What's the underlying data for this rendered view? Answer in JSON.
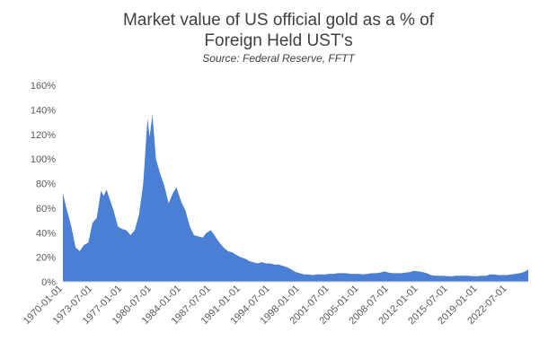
{
  "chart_data": {
    "type": "area",
    "title": "Market value of US official gold as a % of",
    "title_line2": "Foreign Held UST's",
    "subtitle": "Source:  Federal Reserve, FFTT",
    "xlabel": "",
    "ylabel": "",
    "color": "#4a7fd4",
    "ylim": [
      0,
      160
    ],
    "y_ticks": [
      "0%",
      "20%",
      "40%",
      "60%",
      "80%",
      "100%",
      "120%",
      "140%",
      "160%"
    ],
    "x_tick_labels": [
      "1970-01-01",
      "1973-07-01",
      "1977-01-01",
      "1980-07-01",
      "1984-01-01",
      "1987-07-01",
      "1991-01-01",
      "1994-07-01",
      "1998-01-01",
      "2001-07-01",
      "2005-01-01",
      "2008-07-01",
      "2012-01-01",
      "2015-07-01",
      "2019-01-01",
      "2022-07-01"
    ],
    "grid": false,
    "series": [
      {
        "values": [
          [
            "1970-01-01",
            72
          ],
          [
            "1970-06-01",
            60
          ],
          [
            "1971-01-01",
            45
          ],
          [
            "1971-07-01",
            28
          ],
          [
            "1972-01-01",
            25
          ],
          [
            "1972-07-01",
            30
          ],
          [
            "1973-01-01",
            32
          ],
          [
            "1973-07-01",
            48
          ],
          [
            "1974-01-01",
            52
          ],
          [
            "1974-07-01",
            74
          ],
          [
            "1974-11-01",
            70
          ],
          [
            "1975-03-01",
            75
          ],
          [
            "1975-07-01",
            68
          ],
          [
            "1976-01-01",
            58
          ],
          [
            "1976-07-01",
            45
          ],
          [
            "1977-01-01",
            43
          ],
          [
            "1977-07-01",
            42
          ],
          [
            "1978-01-01",
            38
          ],
          [
            "1978-07-01",
            42
          ],
          [
            "1979-01-01",
            55
          ],
          [
            "1979-07-01",
            80
          ],
          [
            "1980-01-01",
            133
          ],
          [
            "1980-04-01",
            118
          ],
          [
            "1980-08-01",
            136
          ],
          [
            "1981-01-01",
            100
          ],
          [
            "1981-07-01",
            88
          ],
          [
            "1982-01-01",
            78
          ],
          [
            "1982-07-01",
            64
          ],
          [
            "1983-01-01",
            72
          ],
          [
            "1983-06-01",
            77
          ],
          [
            "1984-01-01",
            65
          ],
          [
            "1984-07-01",
            58
          ],
          [
            "1985-01-01",
            45
          ],
          [
            "1985-07-01",
            38
          ],
          [
            "1986-01-01",
            37
          ],
          [
            "1986-07-01",
            36
          ],
          [
            "1987-01-01",
            40
          ],
          [
            "1987-07-01",
            42
          ],
          [
            "1988-01-01",
            37
          ],
          [
            "1988-07-01",
            32
          ],
          [
            "1989-01-01",
            28
          ],
          [
            "1989-07-01",
            25
          ],
          [
            "1990-01-01",
            24
          ],
          [
            "1990-07-01",
            22
          ],
          [
            "1991-01-01",
            20
          ],
          [
            "1991-07-01",
            19
          ],
          [
            "1992-01-01",
            17
          ],
          [
            "1992-07-01",
            16
          ],
          [
            "1993-01-01",
            15
          ],
          [
            "1993-07-01",
            16
          ],
          [
            "1994-01-01",
            15
          ],
          [
            "1994-07-01",
            15
          ],
          [
            "1995-01-01",
            14
          ],
          [
            "1995-07-01",
            14
          ],
          [
            "1996-01-01",
            13
          ],
          [
            "1996-07-01",
            12
          ],
          [
            "1997-01-01",
            10
          ],
          [
            "1997-07-01",
            8
          ],
          [
            "1998-01-01",
            7
          ],
          [
            "1998-07-01",
            6
          ],
          [
            "1999-01-01",
            6
          ],
          [
            "1999-07-01",
            5.5
          ],
          [
            "2000-01-01",
            6
          ],
          [
            "2000-07-01",
            6
          ],
          [
            "2001-01-01",
            6
          ],
          [
            "2001-07-01",
            6.5
          ],
          [
            "2002-01-01",
            6.5
          ],
          [
            "2002-07-01",
            7
          ],
          [
            "2003-01-01",
            7
          ],
          [
            "2003-07-01",
            7
          ],
          [
            "2004-01-01",
            6.5
          ],
          [
            "2004-07-01",
            6.5
          ],
          [
            "2005-01-01",
            6.5
          ],
          [
            "2005-07-01",
            6
          ],
          [
            "2006-01-01",
            6.5
          ],
          [
            "2006-07-01",
            7
          ],
          [
            "2007-01-01",
            7
          ],
          [
            "2007-07-01",
            7.5
          ],
          [
            "2008-01-01",
            8.5
          ],
          [
            "2008-07-01",
            7.5
          ],
          [
            "2009-01-01",
            7
          ],
          [
            "2009-07-01",
            7
          ],
          [
            "2010-01-01",
            7
          ],
          [
            "2010-07-01",
            7.5
          ],
          [
            "2011-01-01",
            8
          ],
          [
            "2011-07-01",
            9
          ],
          [
            "2012-01-01",
            8.5
          ],
          [
            "2012-07-01",
            8
          ],
          [
            "2013-01-01",
            7
          ],
          [
            "2013-07-01",
            5.5
          ],
          [
            "2014-01-01",
            5
          ],
          [
            "2014-07-01",
            5
          ],
          [
            "2015-01-01",
            5
          ],
          [
            "2015-07-01",
            4.5
          ],
          [
            "2016-01-01",
            4.5
          ],
          [
            "2016-07-01",
            5
          ],
          [
            "2017-01-01",
            5
          ],
          [
            "2017-07-01",
            5
          ],
          [
            "2018-01-01",
            5
          ],
          [
            "2018-07-01",
            4.5
          ],
          [
            "2019-01-01",
            4.5
          ],
          [
            "2019-07-01",
            5
          ],
          [
            "2020-01-01",
            5
          ],
          [
            "2020-07-01",
            6
          ],
          [
            "2021-01-01",
            6
          ],
          [
            "2021-07-01",
            5.5
          ],
          [
            "2022-01-01",
            5.5
          ],
          [
            "2022-07-01",
            5.5
          ],
          [
            "2023-01-01",
            6
          ],
          [
            "2023-07-01",
            6.5
          ],
          [
            "2024-01-01",
            7
          ],
          [
            "2024-07-01",
            8
          ],
          [
            "2025-01-01",
            10
          ]
        ]
      }
    ]
  }
}
